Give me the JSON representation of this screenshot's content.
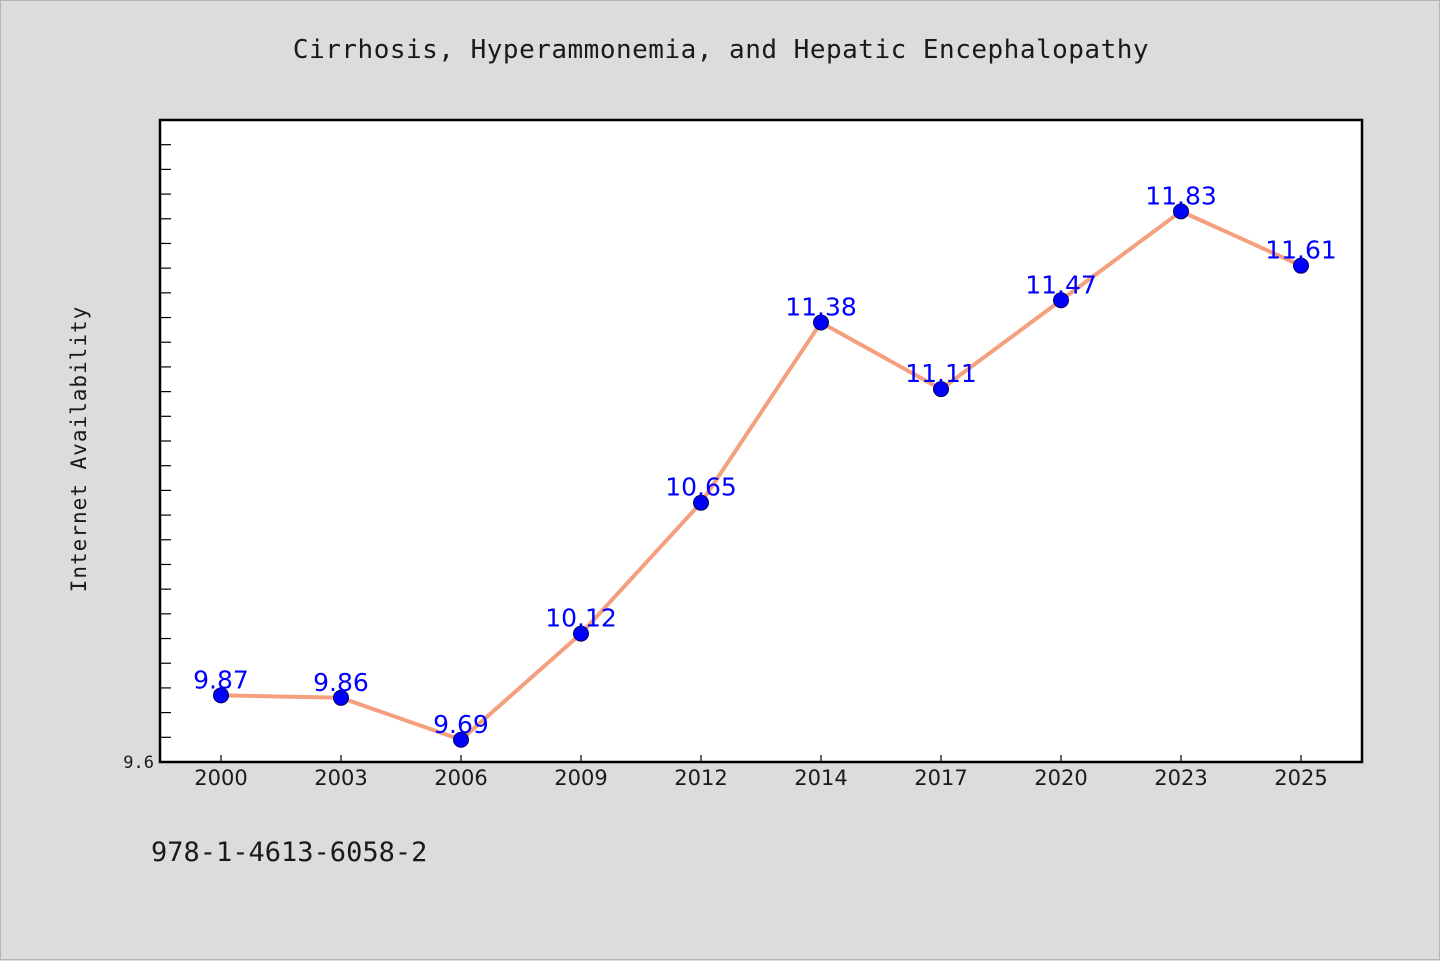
{
  "title": "Cirrhosis, Hyperammonemia, and Hepatic Encephalopathy",
  "footnote": "978-1-4613-6058-2",
  "colors": {
    "background": "#dcdcdc",
    "plot_background": "#ffffff",
    "line": "#f4a07e",
    "marker": "#0000ff",
    "label": "#0000ff"
  },
  "chart_data": {
    "type": "line",
    "title": "Cirrhosis, Hyperammonemia, and Hepatic Encephalopathy",
    "xlabel": "",
    "ylabel": "Internet Availability",
    "categories": [
      "2000",
      "2003",
      "2006",
      "2009",
      "2012",
      "2014",
      "2017",
      "2020",
      "2023",
      "2025"
    ],
    "series": [
      {
        "values": [
          9.87,
          9.86,
          9.69,
          10.12,
          10.65,
          11.38,
          11.11,
          11.47,
          11.83,
          11.61
        ],
        "labels": [
          "9.87",
          "9.86",
          "9.69",
          "10.12",
          "10.65",
          "11.38",
          "11.11",
          "11.47",
          "11.83",
          "11.61"
        ]
      }
    ],
    "ylim": [
      9.6,
      12.2
    ],
    "y_tick_step": 0.1,
    "y_tick_labels": [
      "9.6"
    ],
    "grid": false,
    "legend": "none"
  }
}
